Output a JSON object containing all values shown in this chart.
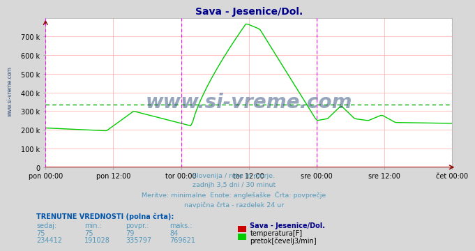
{
  "title": "Sava - Jesenice/Dol.",
  "title_color": "#00008B",
  "bg_color": "#d8d8d8",
  "plot_bg_color": "#ffffff",
  "ylim": [
    0,
    800000
  ],
  "ytick_values": [
    0,
    100000,
    200000,
    300000,
    400000,
    500000,
    600000,
    700000
  ],
  "ytick_labels": [
    "0",
    "100 k",
    "200 k",
    "300 k",
    "400 k",
    "500 k",
    "600 k",
    "700 k"
  ],
  "xtick_labels": [
    "pon 00:00",
    "pon 12:00",
    "tor 00:00",
    "tor 12:00",
    "sre 00:00",
    "sre 12:00",
    "čet 00:00"
  ],
  "xtick_positions": [
    0,
    0.5,
    1.0,
    1.5,
    2.0,
    2.5,
    3.0
  ],
  "vline_positions": [
    0,
    1.0,
    2.0,
    3.0
  ],
  "vline_color": "#FF00FF",
  "hline_value": 335797,
  "hline_color": "#00AA00",
  "grid_color": "#ffaaaa",
  "flow_color": "#00CC00",
  "temp_color": "#CC0000",
  "subtitle_lines": [
    "Slovenija / reke in morje.",
    "zadnjh 3,5 dni / 30 minut",
    "Meritve: minimalne  Enote: anglešaške  Črta: povprečje",
    "navpična črta - razdelek 24 ur"
  ],
  "subtitle_color": "#5599bb",
  "legend_title": "Sava - Jesenice/Dol.",
  "legend_color": "#00008B",
  "table_header": [
    "sedaj:",
    "min.:",
    "povpr.:",
    "maks.:"
  ],
  "table_data": [
    [
      "75",
      "75",
      "79",
      "84"
    ],
    [
      "234412",
      "191028",
      "335797",
      "769621"
    ]
  ],
  "table_labels": [
    "temperatura[F]",
    "pretok[čevelj3/min]"
  ],
  "table_label_colors": [
    "#CC0000",
    "#00CC00"
  ],
  "watermark": "www.si-vreme.com",
  "watermark_color": "#1a3a6b",
  "side_label": "www.si-vreme.com",
  "side_label_color": "#1a3a6b",
  "trenutne_label": "TRENUTNE VREDNOSTI (polna črta):",
  "header_color": "#5599bb",
  "header_bold_color": "#0055aa"
}
